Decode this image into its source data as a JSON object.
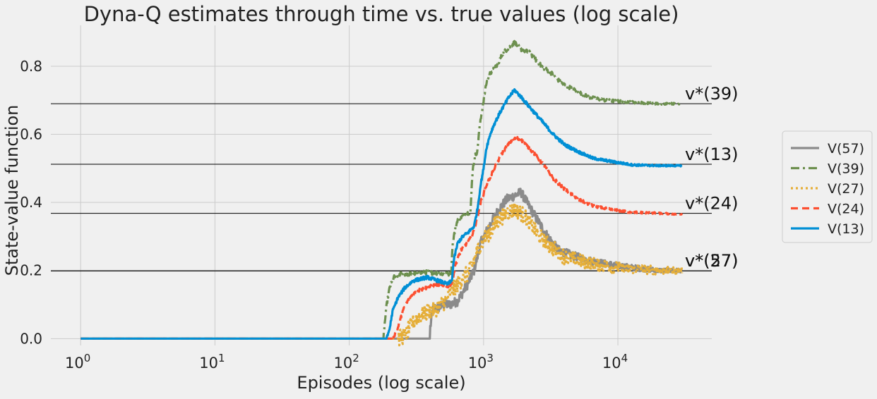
{
  "chart_data": {
    "type": "line",
    "title": "Dyna-Q estimates through time vs. true values (log scale)",
    "xlabel": "Episodes (log scale)",
    "ylabel": "State-value function",
    "xscale": "log",
    "xlim": [
      0.6,
      50000
    ],
    "ylim": [
      -0.02,
      0.92
    ],
    "x_ticks": [
      1,
      10,
      100,
      1000,
      10000
    ],
    "x_tick_labels": [
      [
        "10",
        "0"
      ],
      [
        "10",
        "1"
      ],
      [
        "10",
        "2"
      ],
      [
        "10",
        "3"
      ],
      [
        "10",
        "4"
      ]
    ],
    "y_ticks": [
      0.0,
      0.2,
      0.4,
      0.6,
      0.8
    ],
    "y_tick_labels": [
      "0.0",
      "0.2",
      "0.4",
      "0.6",
      "0.8"
    ],
    "grid": true,
    "legend_placement": "outside-right",
    "true_values": [
      {
        "label": "v*(39)",
        "value": 0.69
      },
      {
        "label": "v*(13)",
        "value": 0.512
      },
      {
        "label": "v*(24)",
        "value": 0.368
      },
      {
        "label": "v*(57)",
        "value": 0.199
      },
      {
        "label": "v*(27)",
        "value": 0.199
      }
    ],
    "series": [
      {
        "name": "V(57)",
        "color": "#8b8b8b",
        "dash": "solid",
        "noise": 0.014,
        "points": [
          [
            1,
            0
          ],
          [
            400,
            0
          ],
          [
            400,
            0.03
          ],
          [
            410,
            0.06
          ],
          [
            420,
            0.09
          ],
          [
            460,
            0.09
          ],
          [
            500,
            0.1
          ],
          [
            560,
            0.1
          ],
          [
            640,
            0.11
          ],
          [
            760,
            0.16
          ],
          [
            850,
            0.2
          ],
          [
            950,
            0.28
          ],
          [
            1100,
            0.33
          ],
          [
            1300,
            0.38
          ],
          [
            1500,
            0.41
          ],
          [
            1700,
            0.42
          ],
          [
            1900,
            0.43
          ],
          [
            2100,
            0.4
          ],
          [
            2500,
            0.35
          ],
          [
            3000,
            0.3
          ],
          [
            3600,
            0.26
          ],
          [
            4500,
            0.245
          ],
          [
            6000,
            0.23
          ],
          [
            8000,
            0.22
          ],
          [
            12000,
            0.21
          ],
          [
            20000,
            0.2
          ],
          [
            30000,
            0.2
          ]
        ]
      },
      {
        "name": "V(39)",
        "color": "#6d904f",
        "dash": "dashdot",
        "noise": 0.006,
        "points": [
          [
            1,
            0
          ],
          [
            180,
            0
          ],
          [
            182,
            0.03
          ],
          [
            190,
            0.1
          ],
          [
            200,
            0.15
          ],
          [
            215,
            0.18
          ],
          [
            240,
            0.19
          ],
          [
            300,
            0.19
          ],
          [
            380,
            0.195
          ],
          [
            500,
            0.19
          ],
          [
            575,
            0.19
          ],
          [
            585,
            0.27
          ],
          [
            600,
            0.3
          ],
          [
            640,
            0.35
          ],
          [
            700,
            0.36
          ],
          [
            770,
            0.37
          ],
          [
            800,
            0.37
          ],
          [
            815,
            0.44
          ],
          [
            830,
            0.5
          ],
          [
            870,
            0.54
          ],
          [
            900,
            0.55
          ],
          [
            920,
            0.6
          ],
          [
            950,
            0.64
          ],
          [
            1000,
            0.7
          ],
          [
            1050,
            0.75
          ],
          [
            1120,
            0.78
          ],
          [
            1250,
            0.8
          ],
          [
            1400,
            0.84
          ],
          [
            1600,
            0.86
          ],
          [
            1700,
            0.87
          ],
          [
            1900,
            0.85
          ],
          [
            2200,
            0.84
          ],
          [
            2700,
            0.8
          ],
          [
            3200,
            0.78
          ],
          [
            3800,
            0.75
          ],
          [
            4800,
            0.73
          ],
          [
            6000,
            0.71
          ],
          [
            8000,
            0.7
          ],
          [
            12000,
            0.695
          ],
          [
            20000,
            0.69
          ],
          [
            30000,
            0.69
          ]
        ]
      },
      {
        "name": "V(27)",
        "color": "#e5ae38",
        "dash": "dotted",
        "noise": 0.024,
        "points": [
          [
            1,
            0
          ],
          [
            230,
            0
          ],
          [
            260,
            0.01
          ],
          [
            300,
            0.05
          ],
          [
            340,
            0.07
          ],
          [
            400,
            0.08
          ],
          [
            450,
            0.09
          ],
          [
            520,
            0.11
          ],
          [
            580,
            0.14
          ],
          [
            650,
            0.16
          ],
          [
            700,
            0.18
          ],
          [
            760,
            0.19
          ],
          [
            830,
            0.22
          ],
          [
            900,
            0.26
          ],
          [
            1000,
            0.29
          ],
          [
            1150,
            0.32
          ],
          [
            1300,
            0.35
          ],
          [
            1500,
            0.37
          ],
          [
            1700,
            0.38
          ],
          [
            1900,
            0.37
          ],
          [
            2200,
            0.34
          ],
          [
            2600,
            0.3
          ],
          [
            3200,
            0.27
          ],
          [
            4000,
            0.24
          ],
          [
            5000,
            0.23
          ],
          [
            6500,
            0.22
          ],
          [
            9000,
            0.21
          ],
          [
            14000,
            0.205
          ],
          [
            20000,
            0.2
          ],
          [
            30000,
            0.2
          ]
        ]
      },
      {
        "name": "V(24)",
        "color": "#fc4f30",
        "dash": "dashed",
        "noise": 0.005,
        "points": [
          [
            1,
            0
          ],
          [
            210,
            0
          ],
          [
            230,
            0.03
          ],
          [
            250,
            0.08
          ],
          [
            280,
            0.12
          ],
          [
            320,
            0.14
          ],
          [
            380,
            0.15
          ],
          [
            460,
            0.16
          ],
          [
            520,
            0.15
          ],
          [
            580,
            0.16
          ],
          [
            620,
            0.22
          ],
          [
            680,
            0.26
          ],
          [
            750,
            0.28
          ],
          [
            820,
            0.3
          ],
          [
            880,
            0.34
          ],
          [
            950,
            0.4
          ],
          [
            1050,
            0.45
          ],
          [
            1200,
            0.5
          ],
          [
            1400,
            0.55
          ],
          [
            1600,
            0.58
          ],
          [
            1750,
            0.59
          ],
          [
            1950,
            0.58
          ],
          [
            2300,
            0.55
          ],
          [
            2800,
            0.51
          ],
          [
            3300,
            0.47
          ],
          [
            4000,
            0.44
          ],
          [
            5000,
            0.41
          ],
          [
            6500,
            0.39
          ],
          [
            8500,
            0.38
          ],
          [
            12000,
            0.372
          ],
          [
            20000,
            0.368
          ],
          [
            30000,
            0.365
          ]
        ]
      },
      {
        "name": "V(13)",
        "color": "#008fd5",
        "dash": "solid",
        "noise": 0.005,
        "points": [
          [
            1,
            0
          ],
          [
            190,
            0
          ],
          [
            200,
            0.03
          ],
          [
            210,
            0.08
          ],
          [
            230,
            0.12
          ],
          [
            260,
            0.15
          ],
          [
            300,
            0.17
          ],
          [
            380,
            0.18
          ],
          [
            460,
            0.17
          ],
          [
            540,
            0.16
          ],
          [
            580,
            0.17
          ],
          [
            600,
            0.23
          ],
          [
            640,
            0.28
          ],
          [
            700,
            0.3
          ],
          [
            760,
            0.31
          ],
          [
            850,
            0.33
          ],
          [
            900,
            0.38
          ],
          [
            950,
            0.45
          ],
          [
            1000,
            0.5
          ],
          [
            1050,
            0.56
          ],
          [
            1120,
            0.6
          ],
          [
            1200,
            0.63
          ],
          [
            1350,
            0.67
          ],
          [
            1550,
            0.71
          ],
          [
            1700,
            0.73
          ],
          [
            1900,
            0.71
          ],
          [
            2200,
            0.68
          ],
          [
            2700,
            0.64
          ],
          [
            3300,
            0.6
          ],
          [
            4000,
            0.57
          ],
          [
            5000,
            0.55
          ],
          [
            6500,
            0.53
          ],
          [
            9000,
            0.52
          ],
          [
            13000,
            0.51
          ],
          [
            20000,
            0.508
          ],
          [
            30000,
            0.508
          ]
        ]
      }
    ]
  }
}
